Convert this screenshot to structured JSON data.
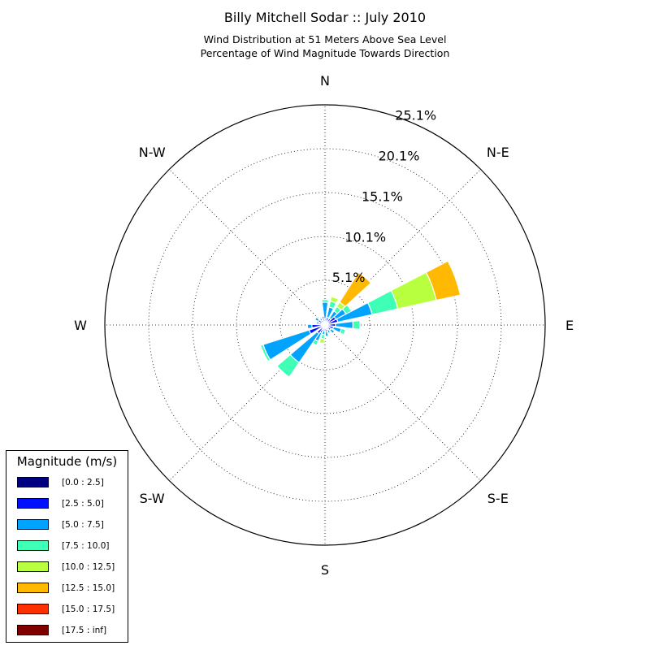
{
  "chart_data": {
    "type": "windrose",
    "title": "Billy Mitchell Sodar :: July 2010",
    "subtitle_lines": [
      "Wind Distribution at 51 Meters Above Sea Level",
      "Percentage of Wind Magnitude Towards Direction"
    ],
    "directions": [
      "N",
      "N-E",
      "E",
      "S-E",
      "S",
      "S-W",
      "W",
      "N-W"
    ],
    "direction_angles": [
      0,
      45,
      90,
      135,
      180,
      225,
      270,
      315
    ],
    "radial_ticks": [
      5.1,
      10.1,
      15.1,
      20.1,
      25.1
    ],
    "radial_tick_labels": [
      "5.1%",
      "10.1%",
      "15.1%",
      "20.1%",
      "25.1%"
    ],
    "radial_max": 25.1,
    "legend_title": "Magnitude (m/s)",
    "legend_placement": "lower-left",
    "grid": true,
    "magnitude_bins": [
      {
        "label": "[0.0 : 2.5]",
        "color": "#000080"
      },
      {
        "label": "[2.5 : 5.0]",
        "color": "#0010ff"
      },
      {
        "label": "[5.0 : 7.5]",
        "color": "#00a4ff"
      },
      {
        "label": "[7.5 : 10.0]",
        "color": "#3fffb7"
      },
      {
        "label": "[10.0 : 12.5]",
        "color": "#b7ff3f"
      },
      {
        "label": "[12.5 : 15.0]",
        "color": "#ffb900"
      },
      {
        "label": "[15.0 : 17.5]",
        "color": "#ff3000"
      },
      {
        "label": "[17.5 : inf]",
        "color": "#800000"
      }
    ],
    "sector_width_deg": 15,
    "sectors": [
      {
        "direction": 0,
        "values": [
          0.3,
          0.4,
          1.9,
          0.3,
          0,
          0,
          0,
          0
        ]
      },
      {
        "direction": 20,
        "values": [
          0.3,
          0.6,
          1.2,
          0.7,
          0.5,
          0,
          0,
          0
        ]
      },
      {
        "direction": 40,
        "values": [
          0.2,
          0.7,
          1.0,
          0.6,
          0.6,
          4.0,
          0,
          0
        ]
      },
      {
        "direction": 55,
        "values": [
          0.3,
          1.1,
          1.3,
          0.7,
          0,
          0,
          0,
          0
        ]
      },
      {
        "direction": 70,
        "values": [
          0.3,
          1.2,
          4.0,
          3.0,
          4.5,
          2.8,
          0,
          0
        ]
      },
      {
        "direction": 90,
        "values": [
          0.3,
          0.9,
          2.0,
          0.8,
          0,
          0,
          0,
          0
        ]
      },
      {
        "direction": 110,
        "values": [
          0.3,
          0.7,
          0.9,
          0.5,
          0,
          0,
          0,
          0
        ]
      },
      {
        "direction": 130,
        "values": [
          0.2,
          0.6,
          0.5,
          0,
          0,
          0,
          0,
          0
        ]
      },
      {
        "direction": 150,
        "values": [
          0.2,
          0.4,
          0.4,
          0,
          0,
          0,
          0,
          0
        ]
      },
      {
        "direction": 170,
        "values": [
          0.3,
          0.5,
          0.5,
          0,
          0,
          0,
          0,
          0
        ]
      },
      {
        "direction": 190,
        "values": [
          0.2,
          0.5,
          0.4,
          0.5,
          0.5,
          0,
          0,
          0
        ]
      },
      {
        "direction": 210,
        "values": [
          0.2,
          0.8,
          1.0,
          0.5,
          0,
          0,
          0,
          0
        ]
      },
      {
        "direction": 222,
        "values": [
          0.3,
          0.9,
          4.0,
          2.0,
          0,
          0,
          0,
          0
        ]
      },
      {
        "direction": 245,
        "values": [
          0.3,
          1.6,
          5.5,
          0.3,
          0,
          0,
          0,
          0
        ]
      },
      {
        "direction": 265,
        "values": [
          0.3,
          1.2,
          0.5,
          0,
          0,
          0,
          0,
          0
        ]
      },
      {
        "direction": 285,
        "values": [
          0.3,
          0.4,
          0.3,
          0,
          0,
          0,
          0,
          0
        ]
      },
      {
        "direction": 305,
        "values": [
          0.3,
          0.6,
          0.4,
          0,
          0,
          0,
          0,
          0
        ]
      },
      {
        "direction": 325,
        "values": [
          0.3,
          0.3,
          0.3,
          0,
          0,
          0,
          0,
          0
        ]
      },
      {
        "direction": 345,
        "values": [
          0.3,
          0.4,
          0.3,
          0,
          0,
          0,
          0,
          0
        ]
      }
    ]
  }
}
